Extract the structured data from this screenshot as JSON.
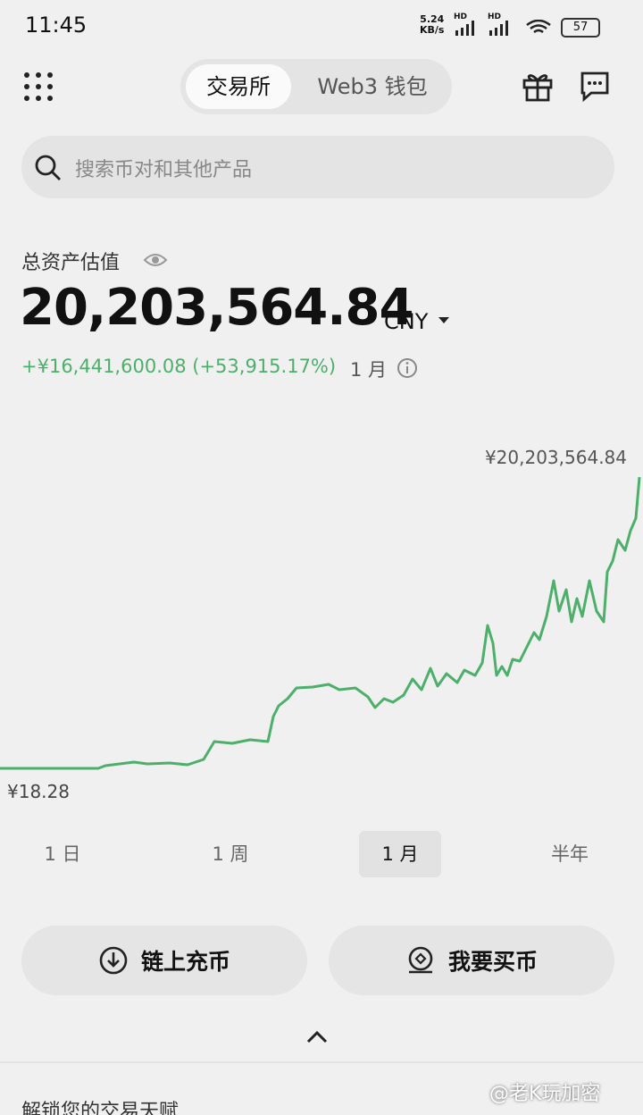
{
  "status_bar": {
    "time": "11:45",
    "net_speed": "5.24",
    "net_unit": "KB/s",
    "signal_labels": [
      "HD",
      "HD"
    ],
    "battery": "57"
  },
  "header": {
    "tabs": [
      "交易所",
      "Web3 钱包"
    ],
    "selected_tab": 0
  },
  "search": {
    "placeholder": "搜索币对和其他产品"
  },
  "balance": {
    "label": "总资产估值",
    "amount": "20,203,564.84",
    "currency": "CNY",
    "change": "+¥16,441,600.08 (+53,915.17%)",
    "period": "1 月"
  },
  "chart": {
    "high_label": "¥20,203,564.84",
    "low_label": "¥18.28"
  },
  "ranges": {
    "options": [
      "1 日",
      "1 周",
      "1 月",
      "半年"
    ],
    "selected": 2
  },
  "actions": [
    "链上充币",
    "我要买币"
  ],
  "footer": {
    "text": "解锁您的交易天赋",
    "watermark": "@老K玩加密"
  }
}
